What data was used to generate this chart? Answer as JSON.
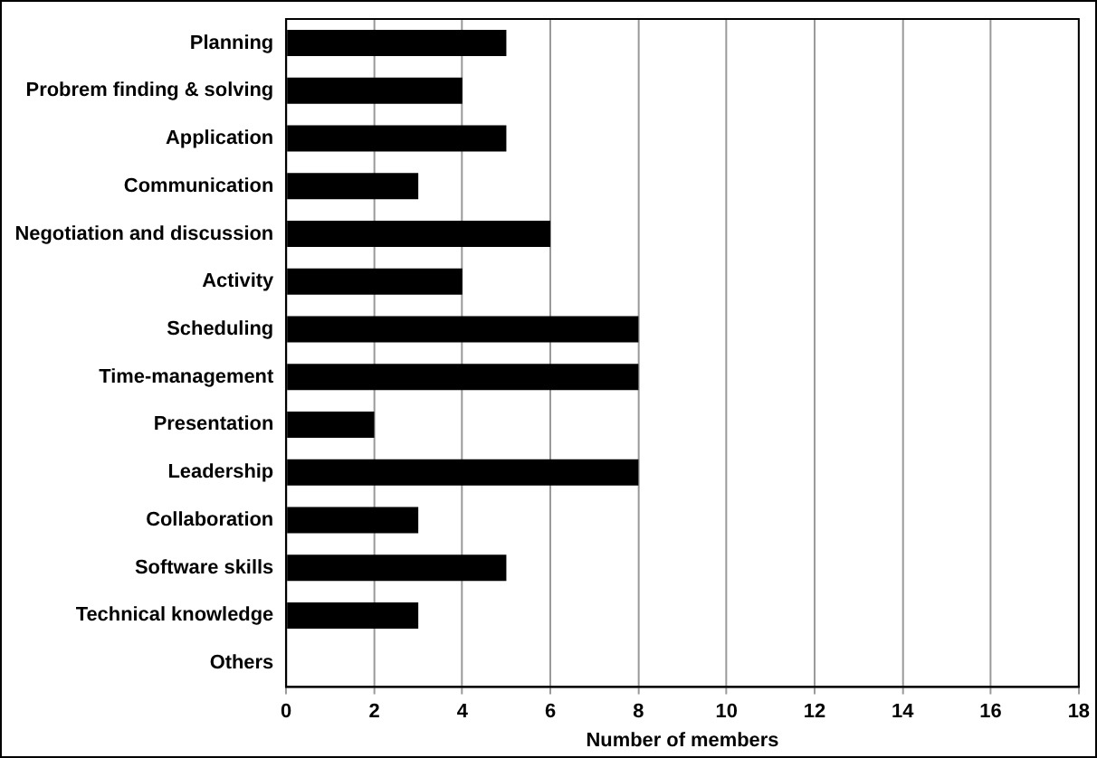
{
  "chart_data": {
    "type": "bar",
    "orientation": "horizontal",
    "categories": [
      "Planning",
      "Probrem finding & solving",
      "Application",
      "Communication",
      "Negotiation and discussion",
      "Activity",
      "Scheduling",
      "Time-management",
      "Presentation",
      "Leadership",
      "Collaboration",
      "Software skills",
      "Technical knowledge",
      "Others"
    ],
    "values": [
      5,
      4,
      5,
      3,
      6,
      4,
      8,
      8,
      2,
      8,
      3,
      5,
      3,
      0
    ],
    "color": "#000000",
    "xlabel": "Number of members",
    "xlim": [
      0,
      18
    ],
    "xticks": [
      0,
      2,
      4,
      6,
      8,
      10,
      12,
      14,
      16,
      18
    ],
    "grid": "x"
  }
}
